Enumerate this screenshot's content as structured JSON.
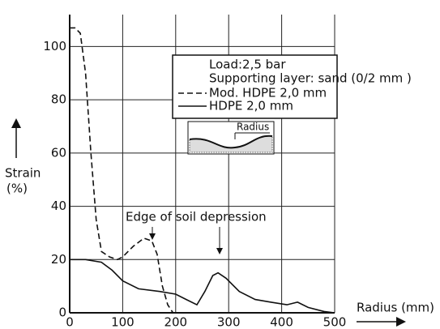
{
  "chart_data": {
    "type": "line",
    "x_label": "Radius (mm)",
    "y_label": "Strain",
    "y_unit": "(%)",
    "annotations": [
      "Edge of soil depression",
      "Load:2,5 bar",
      "Supporting layer: sand (0/2 mm )",
      "Radius"
    ],
    "xlim": [
      0,
      500
    ],
    "ylim": [
      0,
      112
    ],
    "xticks": [
      0,
      100,
      200,
      300,
      400,
      500
    ],
    "yticks": [
      0,
      20,
      40,
      60,
      80,
      100
    ],
    "grid": true,
    "series": [
      {
        "name": "Mod. HDPE 2,0 mm",
        "color": "#111111",
        "dash": true,
        "x": [
          0,
          10,
          20,
          30,
          40,
          50,
          60,
          75,
          90,
          100,
          120,
          140,
          155,
          165,
          175,
          185,
          195
        ],
        "values": [
          107,
          107,
          105,
          90,
          60,
          35,
          23,
          21,
          20,
          21,
          25,
          28,
          27,
          22,
          10,
          3,
          0
        ]
      },
      {
        "name": "HDPE 2,0 mm",
        "color": "#111111",
        "dash": false,
        "x": [
          0,
          30,
          60,
          80,
          100,
          130,
          170,
          200,
          220,
          240,
          255,
          270,
          280,
          295,
          320,
          350,
          380,
          410,
          430,
          450,
          480,
          500
        ],
        "values": [
          20,
          20,
          19,
          16,
          12,
          9,
          8,
          7,
          5,
          3,
          8,
          14,
          15,
          13,
          8,
          5,
          4,
          3,
          4,
          2,
          0.5,
          0
        ]
      }
    ]
  }
}
